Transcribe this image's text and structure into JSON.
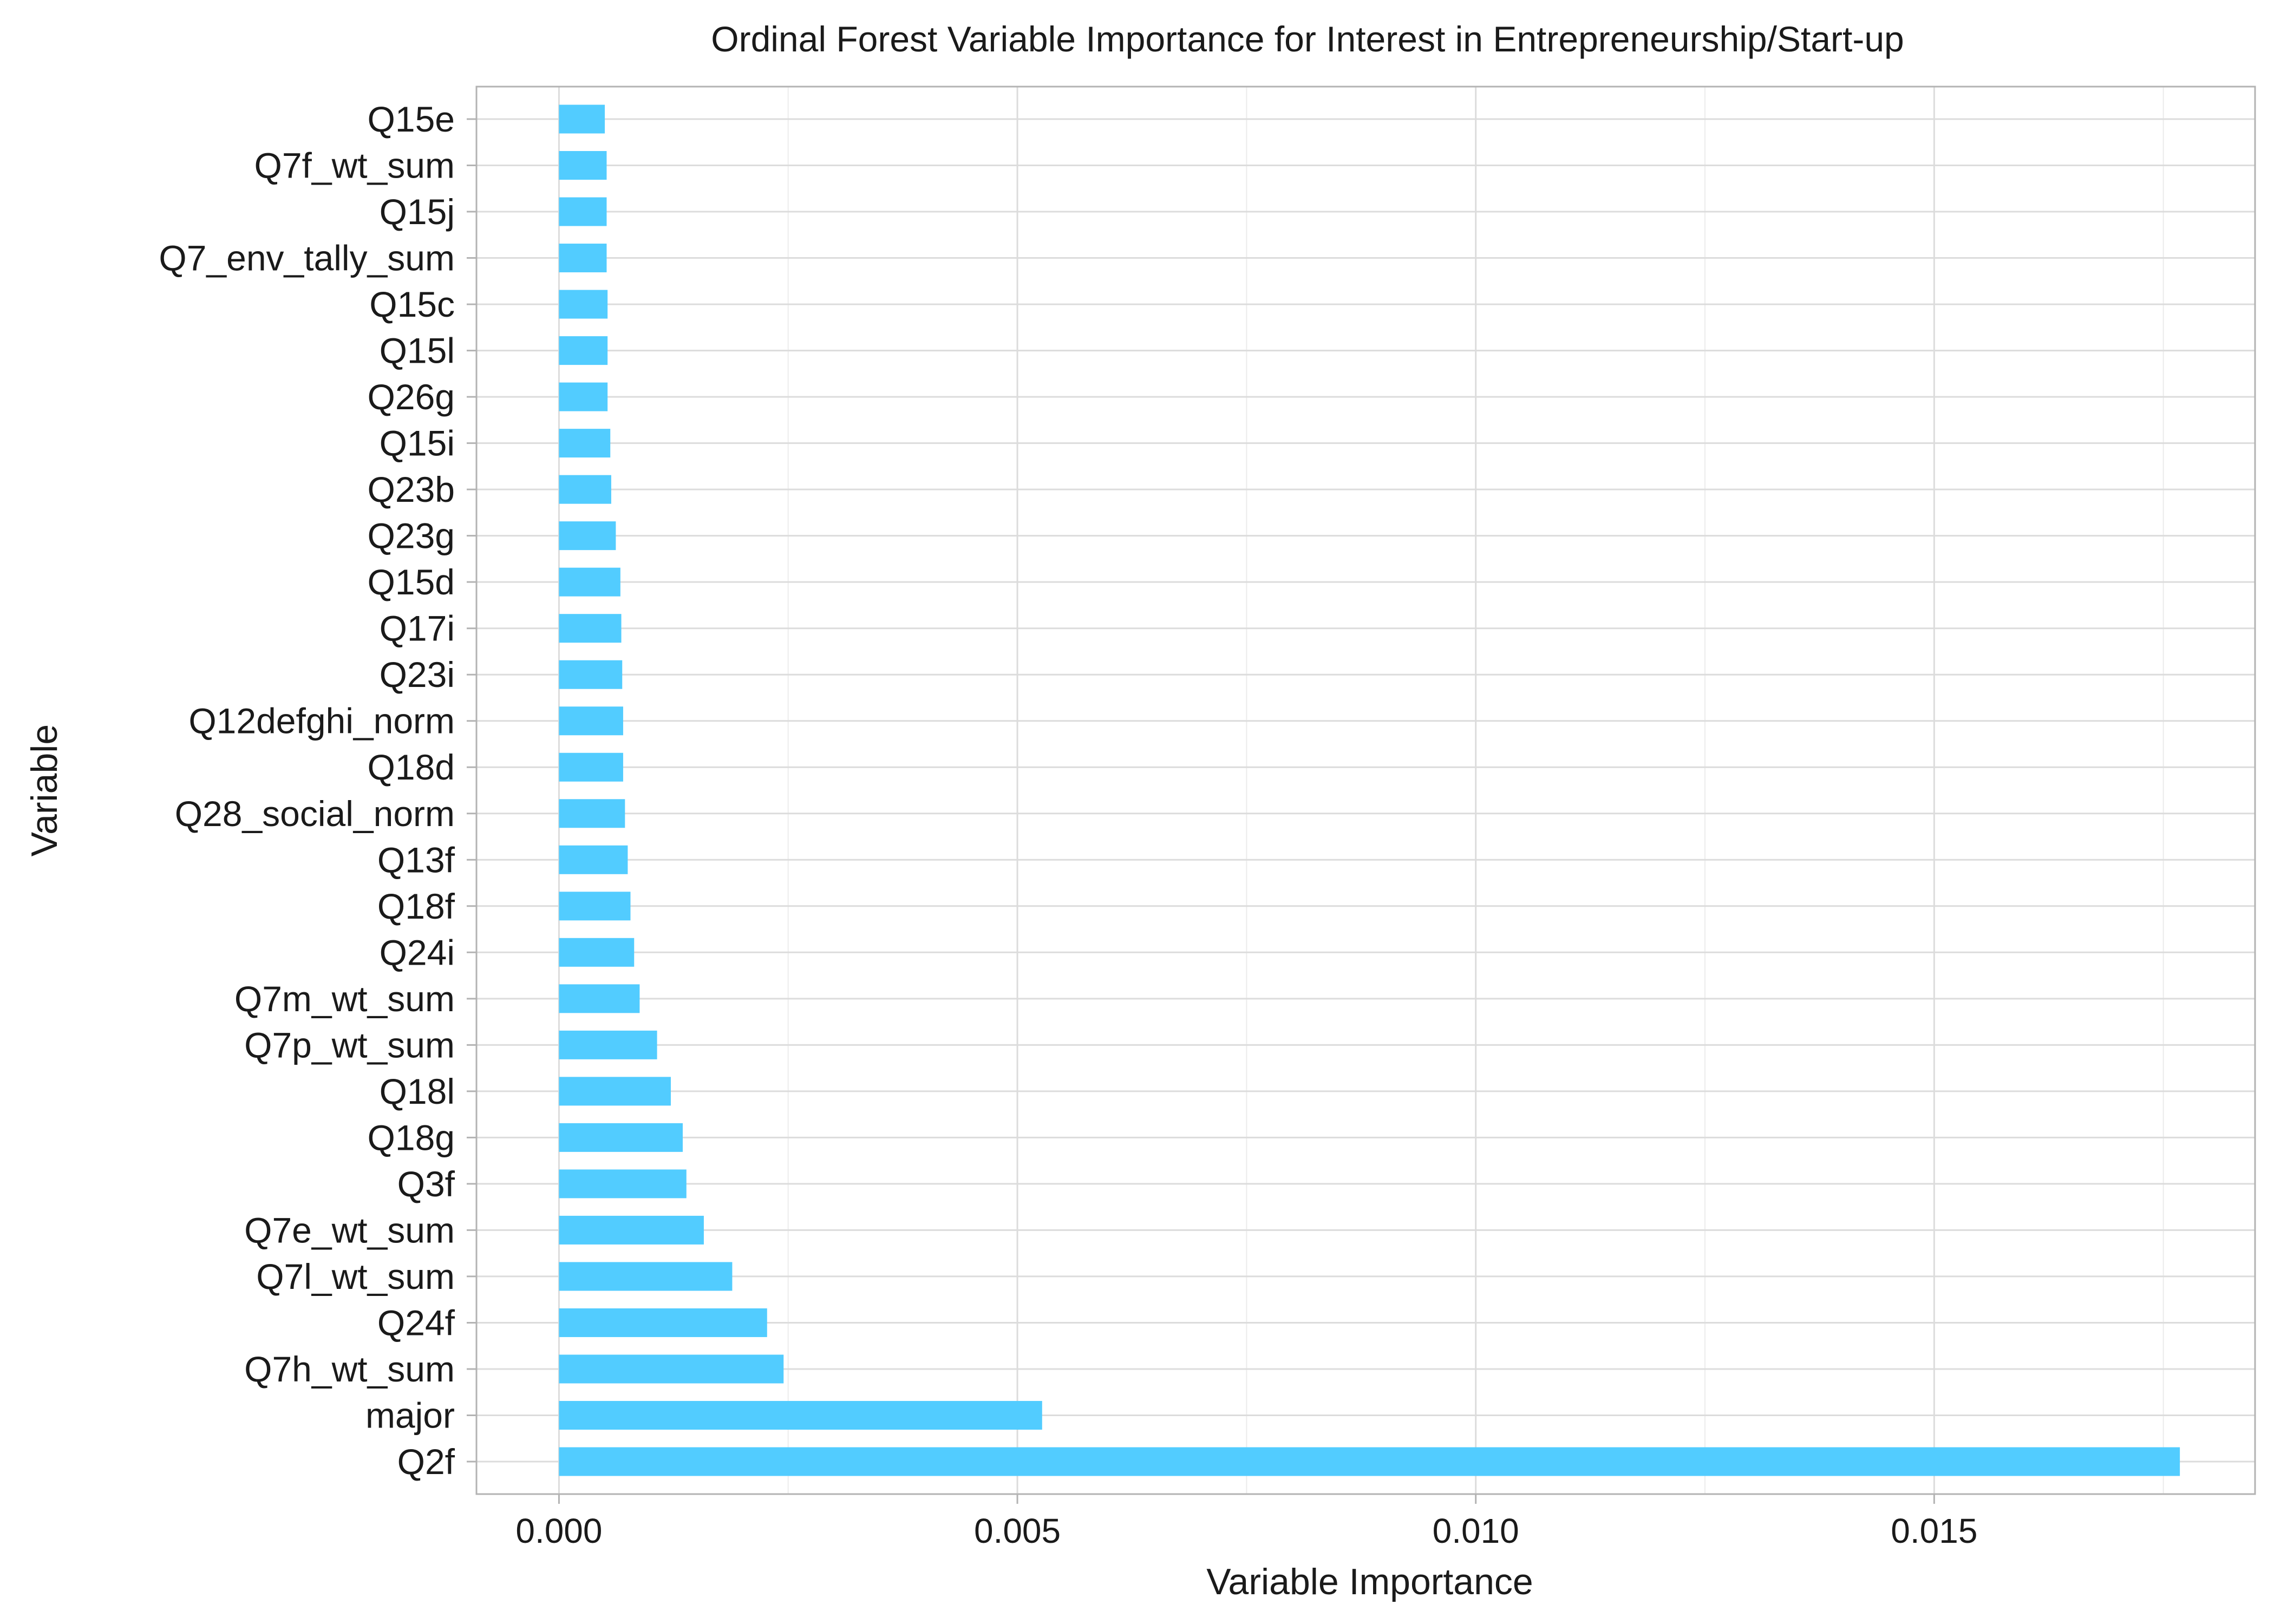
{
  "chart_data": {
    "type": "bar",
    "orientation": "horizontal",
    "title": "Ordinal Forest Variable Importance for Interest in Entrepreneurship/Start-up",
    "xlabel": "Variable Importance",
    "ylabel": "Variable",
    "xlim": [
      -0.0009,
      0.0185
    ],
    "xticks": [
      0.0,
      0.005,
      0.01,
      0.015
    ],
    "xtick_labels": [
      "0.000",
      "0.005",
      "0.010",
      "0.015"
    ],
    "grid": true,
    "bar_color": "#52CCFF",
    "categories": [
      "Q15e",
      "Q7f_wt_sum",
      "Q15j",
      "Q7_env_tally_sum",
      "Q15c",
      "Q15l",
      "Q26g",
      "Q15i",
      "Q23b",
      "Q23g",
      "Q15d",
      "Q17i",
      "Q23i",
      "Q12defghi_norm",
      "Q18d",
      "Q28_social_norm",
      "Q13f",
      "Q18f",
      "Q24i",
      "Q7m_wt_sum",
      "Q7p_wt_sum",
      "Q18l",
      "Q18g",
      "Q3f",
      "Q7e_wt_sum",
      "Q7l_wt_sum",
      "Q24f",
      "Q7h_wt_sum",
      "major",
      "Q2f"
    ],
    "values": [
      0.0005,
      0.00052,
      0.00052,
      0.00052,
      0.00053,
      0.00053,
      0.00053,
      0.00056,
      0.00057,
      0.00062,
      0.00067,
      0.00068,
      0.00069,
      0.0007,
      0.0007,
      0.00072,
      0.00075,
      0.00078,
      0.00082,
      0.00088,
      0.00107,
      0.00122,
      0.00135,
      0.00139,
      0.00158,
      0.00189,
      0.00227,
      0.00245,
      0.00527,
      0.01768
    ]
  }
}
